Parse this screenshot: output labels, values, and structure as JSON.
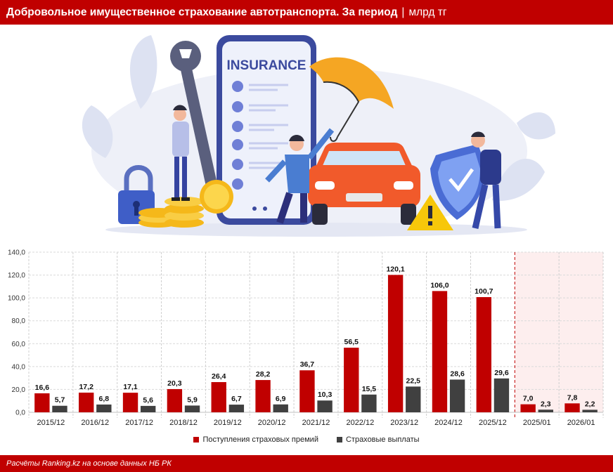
{
  "header": {
    "title": "Добровольное имущественное страхование автотранспорта. За период",
    "separator": "|",
    "unit": "млрд тг"
  },
  "illustration": {
    "insurance_text": "INSURANCE"
  },
  "chart_data": {
    "type": "bar",
    "categories": [
      "2015/12",
      "2016/12",
      "2017/12",
      "2018/12",
      "2019/12",
      "2020/12",
      "2021/12",
      "2022/12",
      "2023/12",
      "2024/12",
      "2025/12",
      "2025/01",
      "2026/01"
    ],
    "series": [
      {
        "name": "Поступления страховых премий",
        "values": [
          16.6,
          17.2,
          17.1,
          20.3,
          26.4,
          28.2,
          36.7,
          56.5,
          120.1,
          106.0,
          100.7,
          7.0,
          7.8
        ],
        "labels": [
          "16,6",
          "17,2",
          "17,1",
          "20,3",
          "26,4",
          "28,2",
          "36,7",
          "56,5",
          "120,1",
          "106,0",
          "100,7",
          "7,0",
          "7,8"
        ],
        "color": "#c00000"
      },
      {
        "name": "Страховые выплаты",
        "values": [
          5.7,
          6.8,
          5.6,
          5.9,
          6.7,
          6.9,
          10.3,
          15.5,
          22.5,
          28.6,
          29.6,
          2.3,
          2.2
        ],
        "labels": [
          "5,7",
          "6,8",
          "5,6",
          "5,9",
          "6,7",
          "6,9",
          "10,3",
          "15,5",
          "22,5",
          "28,6",
          "29,6",
          "2,3",
          "2,2"
        ],
        "color": "#404040"
      }
    ],
    "ylim": [
      0,
      140
    ],
    "yticks": [
      "0,0",
      "20,0",
      "40,0",
      "60,0",
      "80,0",
      "100,0",
      "120,0",
      "140,0"
    ],
    "grid": true,
    "highlight_categories": [
      "2025/01",
      "2026/01"
    ],
    "highlight_color": "#fdeeee",
    "legend_position": "bottom"
  },
  "footer": {
    "source": "Расчёты Ranking.kz на основе данных НБ РК"
  }
}
